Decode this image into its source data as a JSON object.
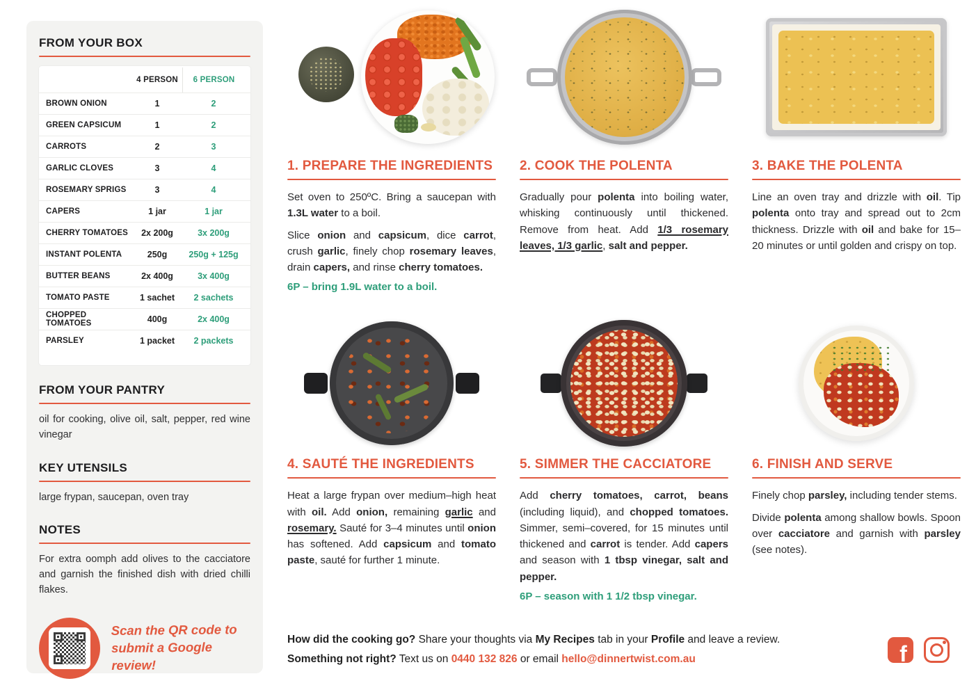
{
  "accent": {
    "orange": "#E2593F",
    "green": "#2E9E7A"
  },
  "sidebar": {
    "box": {
      "title": "FROM YOUR BOX",
      "col_4p": "4 PERSON",
      "col_6p": "6 PERSON",
      "rows": [
        {
          "name": "BROWN ONION",
          "p4": "1",
          "p6": "2"
        },
        {
          "name": "GREEN CAPSICUM",
          "p4": "1",
          "p6": "2"
        },
        {
          "name": "CARROTS",
          "p4": "2",
          "p6": "3"
        },
        {
          "name": "GARLIC CLOVES",
          "p4": "3",
          "p6": "4"
        },
        {
          "name": "ROSEMARY SPRIGS",
          "p4": "3",
          "p6": "4"
        },
        {
          "name": "CAPERS",
          "p4": "1 jar",
          "p6": "1 jar"
        },
        {
          "name": "CHERRY TOMATOES",
          "p4": "2x 200g",
          "p6": "3x 200g"
        },
        {
          "name": "INSTANT POLENTA",
          "p4": "250g",
          "p6": "250g + 125g"
        },
        {
          "name": "BUTTER BEANS",
          "p4": "2x 400g",
          "p6": "3x 400g"
        },
        {
          "name": "TOMATO PASTE",
          "p4": "1 sachet",
          "p6": "2 sachets"
        },
        {
          "name": "CHOPPED TOMATOES",
          "p4": "400g",
          "p6": "2x 400g"
        },
        {
          "name": "PARSLEY",
          "p4": "1 packet",
          "p6": "2 packets"
        }
      ]
    },
    "pantry": {
      "title": "FROM YOUR PANTRY",
      "text": "oil for cooking, olive oil, salt, pepper, red wine vinegar"
    },
    "utensils": {
      "title": "KEY UTENSILS",
      "text": "large frypan, saucepan, oven tray"
    },
    "notes": {
      "title": "NOTES",
      "text": "For extra oomph add olives to the cacciatore and garnish the finished dish with dried chilli flakes."
    },
    "review": {
      "qr_icon": "qr-code",
      "line1": "Scan the QR code to",
      "line2": "submit a Google review!"
    }
  },
  "steps": [
    {
      "title": "1. PREPARE THE INGREDIENTS",
      "photo": "ingredients-plate",
      "paras": [
        {
          "segs": [
            {
              "t": "Set oven to 250ºC. Bring a saucepan with "
            },
            {
              "t": "1.3L water",
              "b": true
            },
            {
              "t": " to a boil."
            }
          ]
        },
        {
          "segs": [
            {
              "t": "Slice "
            },
            {
              "t": "onion",
              "b": true
            },
            {
              "t": " and "
            },
            {
              "t": "capsicum",
              "b": true
            },
            {
              "t": ", dice "
            },
            {
              "t": "carrot",
              "b": true
            },
            {
              "t": ", crush "
            },
            {
              "t": "garlic",
              "b": true
            },
            {
              "t": ", finely chop "
            },
            {
              "t": "rosemary leaves",
              "b": true
            },
            {
              "t": ", drain "
            },
            {
              "t": "capers,",
              "b": true
            },
            {
              "t": " and rinse "
            },
            {
              "t": "cherry tomatoes.",
              "b": true
            }
          ]
        }
      ],
      "note": "6P – bring 1.9L water to a boil."
    },
    {
      "title": "2. COOK THE POLENTA",
      "photo": "polenta-pot",
      "paras": [
        {
          "segs": [
            {
              "t": "Gradually pour "
            },
            {
              "t": "polenta",
              "b": true
            },
            {
              "t": " into boiling water, whisking continuously until thickened. Remove from heat. Add "
            },
            {
              "t": "1/3 rosemary leaves, 1/3 garlic",
              "b": true,
              "u": true
            },
            {
              "t": ", "
            },
            {
              "t": "salt and pepper.",
              "b": true
            }
          ]
        }
      ]
    },
    {
      "title": "3. BAKE THE POLENTA",
      "photo": "polenta-tray",
      "paras": [
        {
          "segs": [
            {
              "t": "Line an oven tray and drizzle with "
            },
            {
              "t": "oil",
              "b": true
            },
            {
              "t": ". Tip "
            },
            {
              "t": "polenta",
              "b": true
            },
            {
              "t": " onto tray and spread out to 2cm thickness. Drizzle with "
            },
            {
              "t": "oil",
              "b": true
            },
            {
              "t": " and bake for 15–20 minutes or until golden and crispy on top."
            }
          ]
        }
      ]
    },
    {
      "title": "4. SAUTÉ THE INGREDIENTS",
      "photo": "saute-frypan",
      "paras": [
        {
          "segs": [
            {
              "t": "Heat a large frypan over medium–high heat with "
            },
            {
              "t": "oil.",
              "b": true
            },
            {
              "t": " Add "
            },
            {
              "t": "onion,",
              "b": true
            },
            {
              "t": " remaining "
            },
            {
              "t": "garlic",
              "b": true,
              "u": true
            },
            {
              "t": " and "
            },
            {
              "t": "rosemary.",
              "b": true,
              "u": true
            },
            {
              "t": " Sauté for 3–4 minutes until "
            },
            {
              "t": "onion",
              "b": true
            },
            {
              "t": " has softened. Add "
            },
            {
              "t": "capsicum",
              "b": true
            },
            {
              "t": " and "
            },
            {
              "t": "tomato paste",
              "b": true
            },
            {
              "t": ", sauté for further 1 minute."
            }
          ]
        }
      ]
    },
    {
      "title": "5. SIMMER THE CACCIATORE",
      "photo": "cacciatore-pot",
      "paras": [
        {
          "segs": [
            {
              "t": "Add "
            },
            {
              "t": "cherry tomatoes, carrot, beans",
              "b": true
            },
            {
              "t": " (including liquid), and "
            },
            {
              "t": "chopped tomatoes.",
              "b": true
            },
            {
              "t": " Simmer, semi–covered, for 15 minutes until thickened and "
            },
            {
              "t": "carrot",
              "b": true
            },
            {
              "t": " is tender. Add "
            },
            {
              "t": "capers",
              "b": true
            },
            {
              "t": " and season with "
            },
            {
              "t": "1 tbsp vinegar, salt and pepper.",
              "b": true
            }
          ]
        }
      ],
      "note": "6P – season with 1 1/2 tbsp vinegar."
    },
    {
      "title": "6. FINISH AND SERVE",
      "photo": "plated-dish",
      "paras": [
        {
          "segs": [
            {
              "t": "Finely chop "
            },
            {
              "t": "parsley,",
              "b": true
            },
            {
              "t": " including tender stems."
            }
          ]
        },
        {
          "segs": [
            {
              "t": "Divide "
            },
            {
              "t": "polenta",
              "b": true
            },
            {
              "t": " among shallow bowls. Spoon over "
            },
            {
              "t": "cacciatore",
              "b": true
            },
            {
              "t": " and garnish with "
            },
            {
              "t": "parsley",
              "b": true
            },
            {
              "t": " (see notes)."
            }
          ]
        }
      ]
    }
  ],
  "footer": {
    "line1": [
      {
        "t": "How did the cooking go?",
        "b": true
      },
      {
        "t": " Share your thoughts via "
      },
      {
        "t": "My Recipes",
        "b": true
      },
      {
        "t": " tab in your "
      },
      {
        "t": "Profile",
        "b": true
      },
      {
        "t": " and leave a review."
      }
    ],
    "line2": [
      {
        "t": "Something not right?",
        "b": true
      },
      {
        "t": " Text us on "
      },
      {
        "t": "0440 132 826",
        "b": true,
        "c": "#E2593F",
        "n": "phone-link",
        "i": true
      },
      {
        "t": " or email "
      },
      {
        "t": "hello@dinnertwist.com.au",
        "b": true,
        "c": "#E2593F",
        "n": "email-link",
        "i": true
      }
    ],
    "social": [
      "facebook-icon",
      "instagram-icon"
    ]
  }
}
